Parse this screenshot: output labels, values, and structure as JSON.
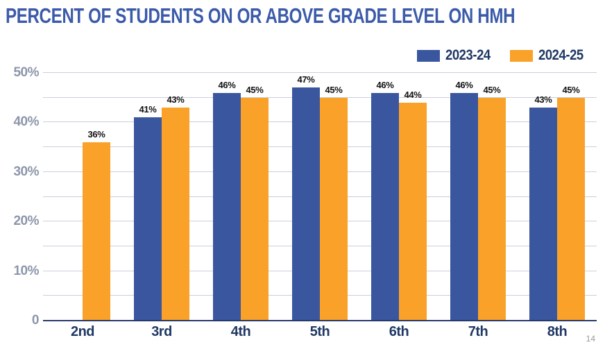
{
  "page": {
    "title": "PERCENT OF STUDENTS ON OR ABOVE GRADE LEVEL ON HMH",
    "page_number": "14"
  },
  "legend": {
    "items": [
      {
        "label": "2023-24",
        "color": "#3A569F"
      },
      {
        "label": "2024-25",
        "color": "#F9A128"
      }
    ]
  },
  "chart_data": {
    "type": "bar",
    "title": "PERCENT OF STUDENTS ON OR ABOVE GRADE LEVEL ON HMH",
    "categories": [
      "2nd",
      "3rd",
      "4th",
      "5th",
      "6th",
      "7th",
      "8th"
    ],
    "series": [
      {
        "name": "2023-24",
        "color": "#3A569F",
        "values": [
          null,
          41,
          46,
          47,
          46,
          46,
          43
        ]
      },
      {
        "name": "2024-25",
        "color": "#F9A128",
        "values": [
          36,
          43,
          45,
          45,
          44,
          45,
          45
        ]
      }
    ],
    "value_suffix": "%",
    "data_labels": true,
    "xlabel": "",
    "ylabel": "",
    "ylim": [
      0,
      50
    ],
    "gridline_step": 5,
    "grid": true,
    "legend_position": "top-right",
    "y_ticks": [
      {
        "label": "50%",
        "value": 50
      },
      {
        "label": "40%",
        "value": 40
      },
      {
        "label": "30%",
        "value": 30
      },
      {
        "label": "20%",
        "value": 20
      },
      {
        "label": "10%",
        "value": 10
      },
      {
        "label": "0",
        "value": 0
      }
    ]
  },
  "colors": {
    "title": "#3B5AA9",
    "axis_label": "#1F3864",
    "y_tick": "#8C96AA",
    "gridline": "#C9CFDA",
    "baseline": "#24396B",
    "bar_label": "#111111",
    "page_number": "#999999",
    "background": "#FFFFFF"
  }
}
